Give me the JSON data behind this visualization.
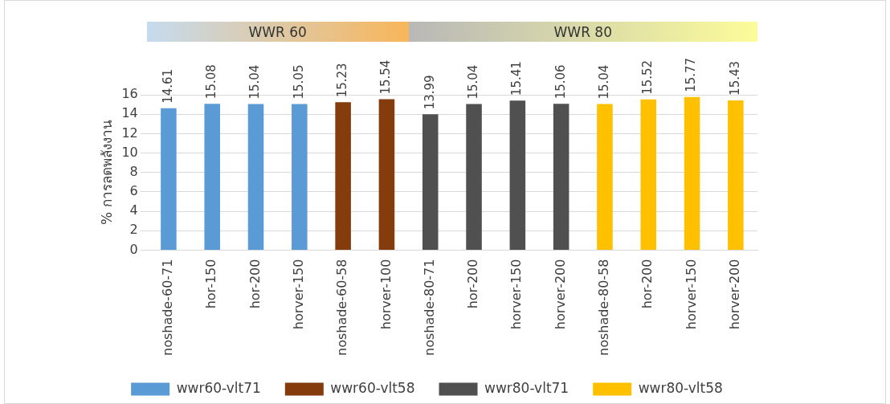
{
  "chart_data": {
    "type": "bar",
    "ylabel": "% การลดพลังงาน",
    "categories": [
      "noshade-60-71",
      "hor-150",
      "hor-200",
      "horver-150",
      "noshade-60-58",
      "horver-100",
      "noshade-80-71",
      "hor-200",
      "horver-150",
      "horver-200",
      "noshade-80-58",
      "hor-200",
      "horver-150",
      "horver-200"
    ],
    "series": [
      {
        "name": "wwr60-vlt71",
        "color": "#5b9bd5",
        "values": [
          14.61,
          15.08,
          15.04,
          15.05,
          null,
          null,
          null,
          null,
          null,
          null,
          null,
          null,
          null,
          null
        ]
      },
      {
        "name": "wwr60-vlt58",
        "color": "#843c0c",
        "values": [
          null,
          null,
          null,
          null,
          15.23,
          15.54,
          null,
          null,
          null,
          null,
          null,
          null,
          null,
          null
        ]
      },
      {
        "name": "wwr80-vlt71",
        "color": "#505050",
        "values": [
          null,
          null,
          null,
          null,
          null,
          null,
          13.99,
          15.04,
          15.41,
          15.06,
          null,
          null,
          null,
          null
        ]
      },
      {
        "name": "wwr80-vlt58",
        "color": "#ffc000",
        "values": [
          null,
          null,
          null,
          null,
          null,
          null,
          null,
          null,
          null,
          null,
          15.04,
          15.52,
          15.77,
          15.43
        ]
      }
    ],
    "ylim": [
      0,
      16
    ],
    "yticks": [
      0,
      2,
      4,
      6,
      8,
      10,
      12,
      14,
      16
    ],
    "grid": "y",
    "legend": "bottom",
    "data_labels": true,
    "annotations": [
      "WWR 60",
      "WWR 80"
    ]
  }
}
